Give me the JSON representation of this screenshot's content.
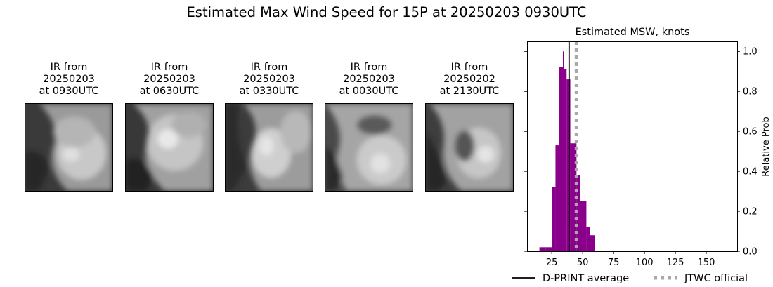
{
  "suptitle": "Estimated Max Wind Speed for 15P at 20250203 0930UTC",
  "ir_panels": [
    {
      "title": "IR from\n20250203\nat 0930UTC"
    },
    {
      "title": "IR from\n20250203\nat 0630UTC"
    },
    {
      "title": "IR from\n20250203\nat 0330UTC"
    },
    {
      "title": "IR from\n20250203\nat 0030UTC"
    },
    {
      "title": "IR from\n20250202\nat 2130UTC"
    }
  ],
  "chart_data": {
    "type": "bar",
    "title": "Estimated MSW, knots",
    "xlabel": "",
    "ylabel": "Relative Prob",
    "xlim": [
      5,
      175
    ],
    "ylim": [
      0,
      1.05
    ],
    "xticks": [
      25,
      50,
      75,
      100,
      125,
      150
    ],
    "yticks": [
      0.0,
      0.2,
      0.4,
      0.6,
      0.8,
      1.0
    ],
    "bar_color": "#8b008b",
    "bins": [
      {
        "x0": 15,
        "x1": 20,
        "y": 0.02
      },
      {
        "x0": 20,
        "x1": 25,
        "y": 0.02
      },
      {
        "x0": 25,
        "x1": 28,
        "y": 0.32
      },
      {
        "x0": 28,
        "x1": 31,
        "y": 0.53
      },
      {
        "x0": 31,
        "x1": 34,
        "y": 0.92
      },
      {
        "x0": 34,
        "x1": 35,
        "y": 1.0
      },
      {
        "x0": 35,
        "x1": 37,
        "y": 0.91
      },
      {
        "x0": 37,
        "x1": 40,
        "y": 0.86
      },
      {
        "x0": 40,
        "x1": 45,
        "y": 0.54
      },
      {
        "x0": 45,
        "x1": 48,
        "y": 0.38
      },
      {
        "x0": 48,
        "x1": 53,
        "y": 0.25
      },
      {
        "x0": 53,
        "x1": 56,
        "y": 0.12
      },
      {
        "x0": 56,
        "x1": 60,
        "y": 0.08
      }
    ],
    "dprint_average": 39,
    "jtwc_official": 45,
    "legend": {
      "placement": "bottom-right",
      "entries": [
        {
          "label": "D-PRINT average",
          "style": "solid-black"
        },
        {
          "label": "JTWC official",
          "style": "dotted-gray"
        }
      ]
    },
    "colors": {
      "dprint": "#000000",
      "jtwc": "#a9a9a9"
    }
  }
}
